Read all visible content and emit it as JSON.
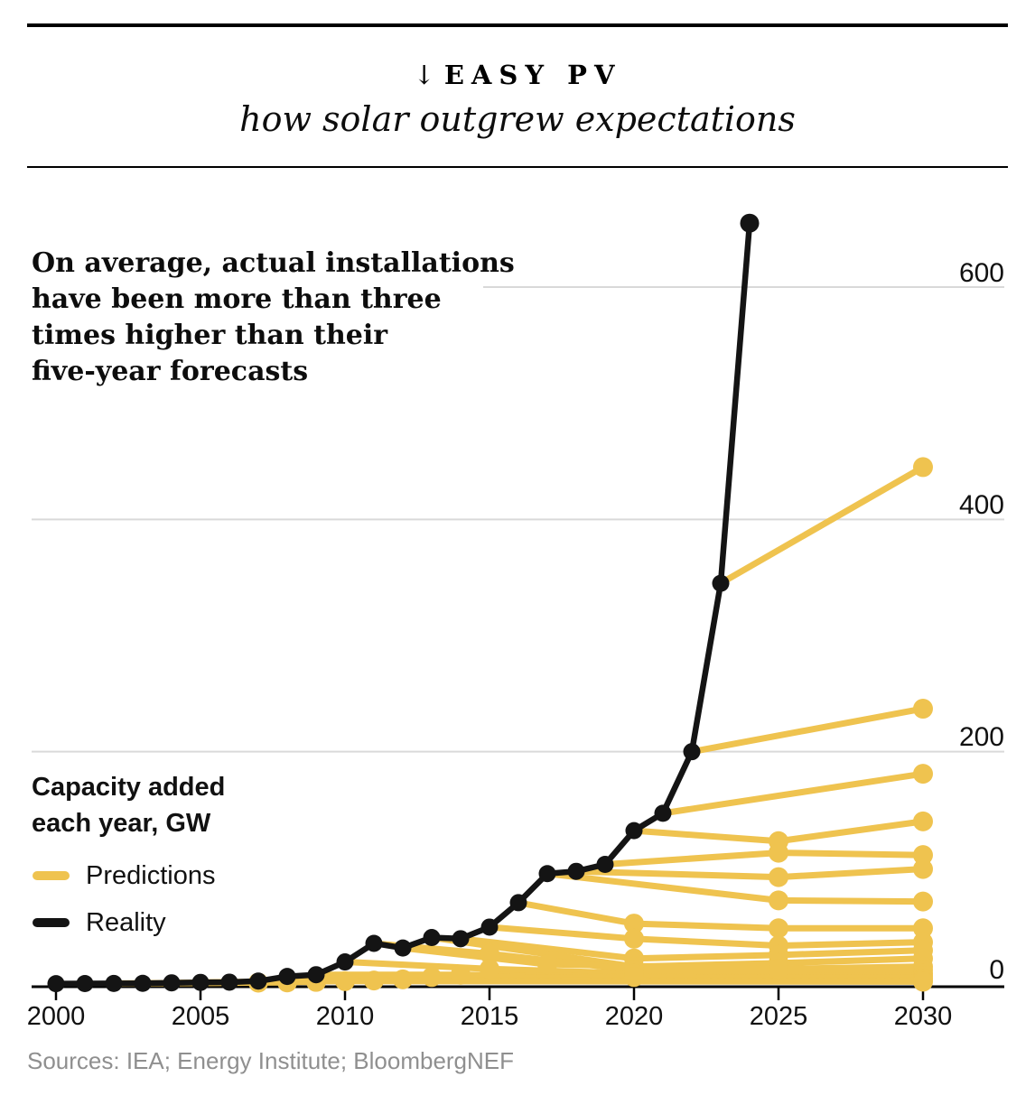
{
  "header": {
    "kicker_arrow": "↓",
    "kicker": "EASY PV",
    "subtitle": "how solar outgrew expectations"
  },
  "annotation": {
    "lines": [
      "On average, actual installations",
      "have been more than three",
      "times higher than their",
      "five-year forecasts"
    ]
  },
  "axis_label": {
    "lines": [
      "Capacity added",
      "each year, GW"
    ]
  },
  "legend": {
    "items": [
      {
        "label": "Predictions",
        "color": "#EFC34F"
      },
      {
        "label": "Reality",
        "color": "#141414"
      }
    ]
  },
  "sources": "Sources: IEA; Energy Institute; BloombergNEF",
  "colors": {
    "predictions": "#EFC34F",
    "reality": "#141414",
    "gridline": "#d9d9d9",
    "axis": "#000000",
    "sources_text": "#8f8f8f"
  },
  "chart_data": {
    "type": "line",
    "title": "EASY PV — how solar outgrew expectations",
    "xlabel": "",
    "ylabel": "Capacity added each year, GW",
    "xlim": [
      2000,
      2030
    ],
    "ylim": [
      0,
      660
    ],
    "x_ticks": [
      2000,
      2005,
      2010,
      2015,
      2020,
      2025,
      2030
    ],
    "y_ticks": [
      0,
      200,
      400,
      600
    ],
    "grid": "horizontal",
    "legend_position": "left-middle",
    "series": [
      {
        "name": "Reality",
        "color": "#141414",
        "points": [
          [
            2000,
            0.3
          ],
          [
            2001,
            0.4
          ],
          [
            2002,
            0.5
          ],
          [
            2003,
            0.6
          ],
          [
            2004,
            1
          ],
          [
            2005,
            1.4
          ],
          [
            2006,
            1.6
          ],
          [
            2007,
            2.5
          ],
          [
            2008,
            6.5
          ],
          [
            2009,
            8
          ],
          [
            2010,
            19
          ],
          [
            2011,
            35
          ],
          [
            2012,
            31
          ],
          [
            2013,
            40
          ],
          [
            2014,
            39
          ],
          [
            2015,
            49
          ],
          [
            2016,
            70
          ],
          [
            2017,
            95
          ],
          [
            2018,
            97
          ],
          [
            2019,
            103
          ],
          [
            2020,
            132
          ],
          [
            2021,
            147
          ],
          [
            2022,
            200
          ],
          [
            2023,
            345
          ],
          [
            2024,
            655
          ]
        ]
      }
    ],
    "predictions": {
      "name": "Predictions",
      "color": "#EFC34F",
      "lines": [
        [
          [
            2023,
            345
          ],
          [
            2030,
            445
          ]
        ],
        [
          [
            2022,
            200
          ],
          [
            2030,
            237
          ]
        ],
        [
          [
            2021,
            147
          ],
          [
            2030,
            181
          ]
        ],
        [
          [
            2020,
            132
          ],
          [
            2025,
            123
          ],
          [
            2030,
            140
          ]
        ],
        [
          [
            2019,
            103
          ],
          [
            2025,
            113
          ],
          [
            2030,
            111
          ]
        ],
        [
          [
            2018,
            97
          ],
          [
            2025,
            92
          ],
          [
            2030,
            99
          ]
        ],
        [
          [
            2017,
            95
          ],
          [
            2025,
            72
          ],
          [
            2030,
            71
          ]
        ],
        [
          [
            2016,
            70
          ],
          [
            2020,
            52
          ],
          [
            2025,
            48
          ],
          [
            2030,
            48
          ]
        ],
        [
          [
            2015,
            49
          ],
          [
            2020,
            39
          ],
          [
            2025,
            33
          ],
          [
            2030,
            36
          ]
        ],
        [
          [
            2014,
            39
          ],
          [
            2020,
            22
          ],
          [
            2025,
            25
          ],
          [
            2030,
            29
          ]
        ],
        [
          [
            2013,
            40
          ],
          [
            2020,
            15
          ],
          [
            2025,
            18
          ],
          [
            2030,
            22
          ]
        ],
        [
          [
            2012,
            31
          ],
          [
            2017,
            17
          ],
          [
            2025,
            13
          ],
          [
            2030,
            15
          ]
        ],
        [
          [
            2011,
            35
          ],
          [
            2015,
            26
          ],
          [
            2020,
            12
          ],
          [
            2030,
            12
          ]
        ],
        [
          [
            2010,
            19
          ],
          [
            2015,
            13
          ],
          [
            2020,
            9
          ],
          [
            2030,
            9
          ]
        ],
        [
          [
            2009,
            8
          ],
          [
            2014,
            8
          ],
          [
            2020,
            6
          ],
          [
            2030,
            7
          ]
        ],
        [
          [
            2008,
            6.5
          ],
          [
            2013,
            6
          ],
          [
            2030,
            5
          ]
        ],
        [
          [
            2007,
            2.5
          ],
          [
            2012,
            4
          ],
          [
            2030,
            4
          ]
        ],
        [
          [
            2006,
            1.6
          ],
          [
            2011,
            3
          ],
          [
            2030,
            3
          ]
        ],
        [
          [
            2005,
            1.4
          ],
          [
            2010,
            2.5
          ],
          [
            2030,
            2
          ]
        ],
        [
          [
            2004,
            1
          ],
          [
            2009,
            1.8
          ]
        ],
        [
          [
            2003,
            0.6
          ],
          [
            2008,
            1.4
          ]
        ],
        [
          [
            2002,
            0.5
          ],
          [
            2007,
            1.2
          ]
        ]
      ]
    }
  }
}
